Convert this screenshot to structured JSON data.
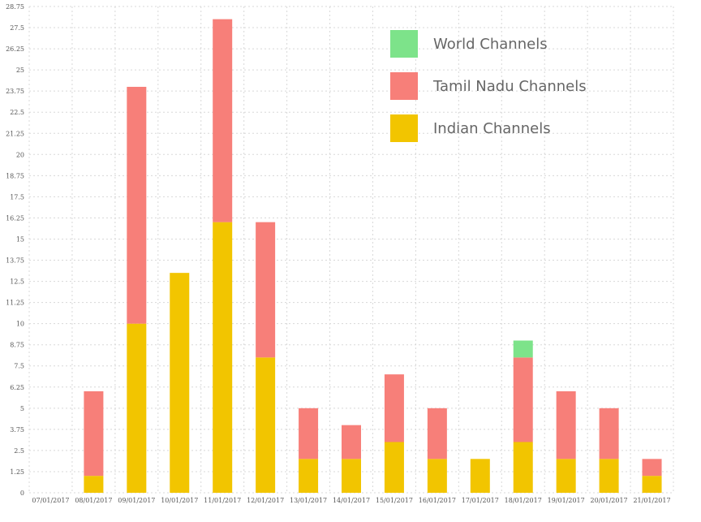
{
  "chart_data": {
    "type": "bar",
    "stacked": true,
    "categories": [
      "07/01/2017",
      "08/01/2017",
      "09/01/2017",
      "10/01/2017",
      "11/01/2017",
      "12/01/2017",
      "13/01/2017",
      "14/01/2017",
      "15/01/2017",
      "16/01/2017",
      "17/01/2017",
      "18/01/2017",
      "19/01/2017",
      "20/01/2017",
      "21/01/2017"
    ],
    "series": [
      {
        "name": "Indian Channels",
        "color": "#f2c500",
        "values": [
          0,
          1,
          10,
          13,
          16,
          8,
          2,
          2,
          3,
          2,
          2,
          3,
          2,
          2,
          1
        ]
      },
      {
        "name": "Tamil Nadu Channels",
        "color": "#f77f79",
        "values": [
          0,
          5,
          14,
          0,
          12,
          8,
          3,
          2,
          4,
          3,
          0,
          5,
          4,
          3,
          1
        ]
      },
      {
        "name": "World Channels",
        "color": "#7de38a",
        "values": [
          0,
          0,
          0,
          0,
          0,
          0,
          0,
          0,
          0,
          0,
          0,
          1,
          0,
          0,
          0
        ]
      }
    ],
    "yticks": [
      "0",
      "1.25",
      "2.5",
      "3.75",
      "5",
      "6.25",
      "7.5",
      "8.75",
      "10",
      "11.25",
      "12.5",
      "13.75",
      "15",
      "16.25",
      "17.5",
      "18.75",
      "20",
      "21.25",
      "22.5",
      "23.75",
      "25",
      "26.25",
      "27.5",
      "28.75"
    ],
    "ylim": [
      0,
      28.75
    ],
    "legend": {
      "placement": "top-right",
      "entries": [
        "World Channels",
        "Tamil Nadu Channels",
        "Indian Channels"
      ]
    },
    "grid": true
  }
}
